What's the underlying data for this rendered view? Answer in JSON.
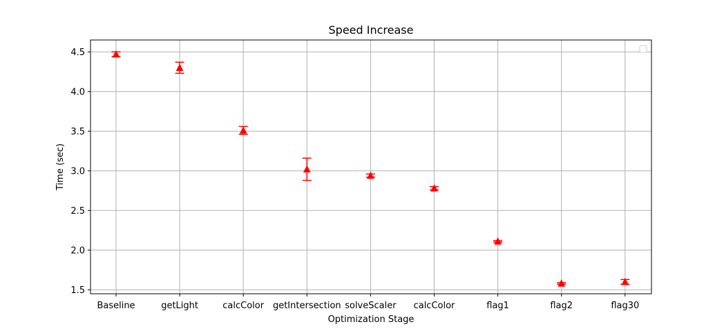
{
  "chart_data": {
    "type": "scatter",
    "title": "Speed Increase",
    "xlabel": "Optimization Stage",
    "ylabel": "Time (sec)",
    "categories": [
      "Baseline",
      "getLight",
      "calcColor",
      "getIntersection",
      "solveScaler",
      "calcColor",
      "flag1",
      "flag2",
      "flag30"
    ],
    "series": [
      {
        "values": [
          4.47,
          4.3,
          3.51,
          3.02,
          2.94,
          2.78,
          2.11,
          1.58,
          1.6
        ],
        "errors": [
          0.03,
          0.07,
          0.05,
          0.14,
          0.02,
          0.02,
          0.01,
          0.01,
          0.03
        ],
        "color": "#ff0000",
        "marker": "triangle"
      }
    ],
    "ylim": [
      1.45,
      4.65
    ],
    "yticks": [
      1.5,
      2.0,
      2.5,
      3.0,
      3.5,
      4.0,
      4.5
    ],
    "ytick_labels": [
      "1.5",
      "2.0",
      "2.5",
      "3.0",
      "3.5",
      "4.0",
      "4.5"
    ],
    "grid": true,
    "legend": "top-right",
    "colors": {
      "grid": "#b0b0b0",
      "axis": "#000000",
      "legend_border": "#cccccc"
    }
  }
}
